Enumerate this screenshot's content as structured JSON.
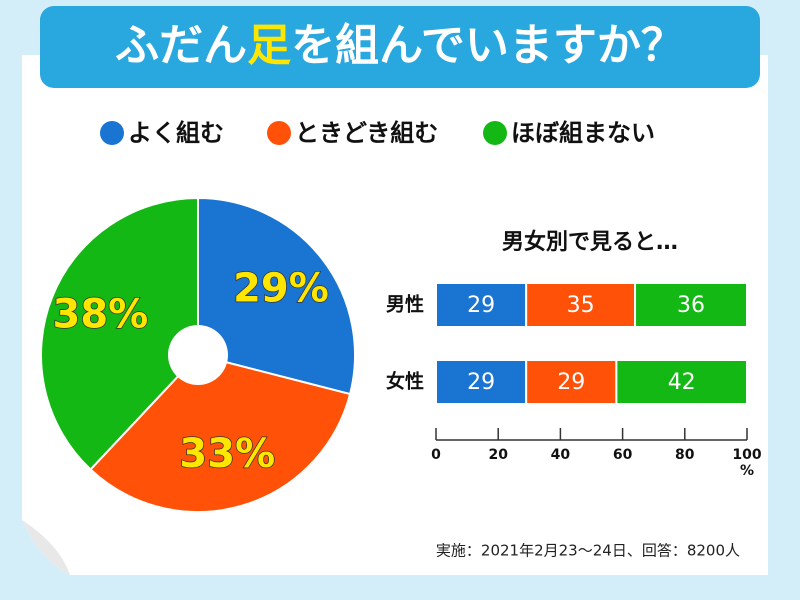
{
  "header": {
    "title": [
      "ふだん",
      "足",
      "を組んでいますか？"
    ]
  },
  "chart_data": [
    {
      "type": "pie",
      "categories": [
        "よく組む",
        "ときどき組む",
        "ほぼ組まない"
      ],
      "values": [
        29,
        33,
        38
      ],
      "value_labels": [
        "29%",
        "33%",
        "38%"
      ],
      "colors": [
        "#1a74d2",
        "#ff5208",
        "#14b814"
      ]
    },
    {
      "type": "stacked-bar-horizontal",
      "title": "男女別で見ると…",
      "categories": [
        "男性",
        "女性"
      ],
      "series": [
        {
          "color": "#1a74d2",
          "values": [
            29,
            29
          ]
        },
        {
          "color": "#ff5208",
          "values": [
            35,
            29
          ]
        },
        {
          "color": "#14b814",
          "values": [
            36,
            42
          ]
        }
      ],
      "xlim": [
        0,
        100
      ],
      "xticks": [
        0,
        20,
        40,
        60,
        80,
        100
      ],
      "xlabel": "%"
    }
  ],
  "footnote": "実施：2021年2月23〜24日、回答：8200人"
}
